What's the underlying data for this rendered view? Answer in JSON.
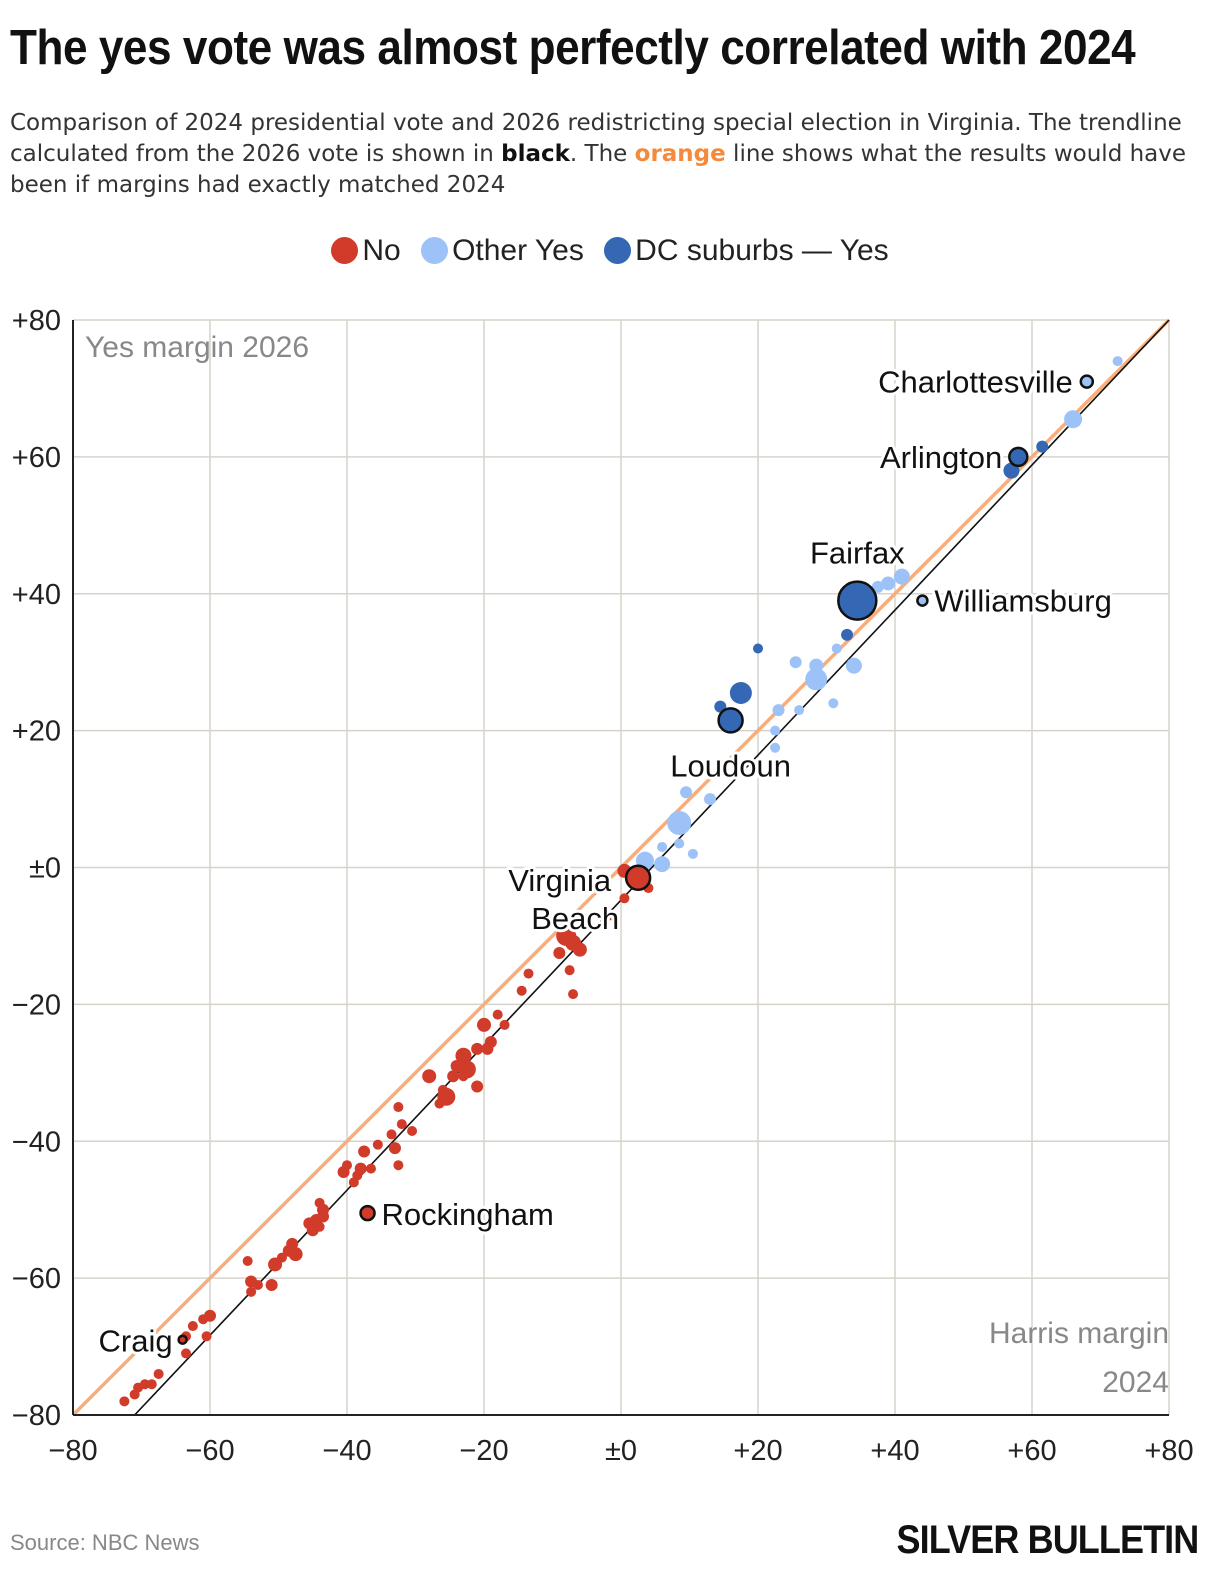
{
  "title": "The yes vote was almost perfectly correlated with 2024",
  "subtitle": {
    "part1": "Comparison of 2024 presidential vote and 2026 redistricting special election in Virginia. The trendline calculated from the 2026 vote is shown in ",
    "black_word": "black",
    "part2": ". The ",
    "orange_word": "orange",
    "part3": " line shows what the results would have been if margins had exactly matched 2024"
  },
  "legend": [
    {
      "label": "No",
      "color": "#d13b2a"
    },
    {
      "label": "Other Yes",
      "color": "#9cc2f7"
    },
    {
      "label": "DC suburbs — Yes",
      "color": "#3467b4"
    }
  ],
  "source": "Source: NBC News",
  "brand": "SILVER BULLETIN",
  "colors": {
    "no": "#d13b2a",
    "other_yes": "#9cc2f7",
    "dc": "#3467b4",
    "orange_line": "#f7ae7c",
    "trend_line": "#111111",
    "grid": "#d7d3cb"
  },
  "chart_data": {
    "type": "scatter",
    "xlabel": "Harris margin 2024",
    "ylabel": "Yes margin 2026",
    "xlim": [
      -80,
      80
    ],
    "ylim": [
      -80,
      80
    ],
    "xticks": [
      "−80",
      "−60",
      "−40",
      "−20",
      "±0",
      "+20",
      "+40",
      "+60",
      "+80"
    ],
    "yticks": [
      "+80",
      "+60",
      "+40",
      "+20",
      "±0",
      "−20",
      "−40",
      "−60",
      "−80"
    ],
    "tick_values": [
      -80,
      -60,
      -40,
      -20,
      0,
      20,
      40,
      60,
      80
    ],
    "equal_line": [
      [
        -80,
        -80
      ],
      [
        80,
        80
      ]
    ],
    "trend_line": [
      [
        -71,
        -80
      ],
      [
        80,
        80
      ]
    ],
    "labeled_points": [
      {
        "name": "Charlottesville",
        "x": 68,
        "y": 71,
        "group": "other_yes",
        "size": 6
      },
      {
        "name": "Arlington",
        "x": 58,
        "y": 60,
        "group": "dc",
        "size": 9
      },
      {
        "name": "Fairfax",
        "x": 34.5,
        "y": 39,
        "group": "dc",
        "size": 19
      },
      {
        "name": "Williamsburg",
        "x": 44,
        "y": 39,
        "group": "other_yes",
        "size": 5
      },
      {
        "name": "Loudoun",
        "x": 16,
        "y": 21.5,
        "group": "dc",
        "size": 12
      },
      {
        "name": "Virginia Beach",
        "x": 2.5,
        "y": -1.5,
        "group": "no",
        "size": 12
      },
      {
        "name": "Rockingham",
        "x": -37,
        "y": -50.5,
        "group": "no",
        "size": 7
      },
      {
        "name": "Craig",
        "x": -64,
        "y": -69,
        "group": "no",
        "size": 4
      }
    ],
    "points": [
      {
        "x": 72.5,
        "y": 74,
        "group": "other_yes",
        "size": 5
      },
      {
        "x": 66,
        "y": 65.5,
        "group": "other_yes",
        "size": 9
      },
      {
        "x": 61.5,
        "y": 61.5,
        "group": "dc",
        "size": 6
      },
      {
        "x": 57,
        "y": 58,
        "group": "dc",
        "size": 8
      },
      {
        "x": 41,
        "y": 42.5,
        "group": "other_yes",
        "size": 8
      },
      {
        "x": 39,
        "y": 41.5,
        "group": "other_yes",
        "size": 7
      },
      {
        "x": 37.5,
        "y": 41,
        "group": "other_yes",
        "size": 6
      },
      {
        "x": 33,
        "y": 34,
        "group": "dc",
        "size": 6
      },
      {
        "x": 34,
        "y": 29.5,
        "group": "other_yes",
        "size": 8
      },
      {
        "x": 31.5,
        "y": 32,
        "group": "other_yes",
        "size": 5
      },
      {
        "x": 28.5,
        "y": 29.5,
        "group": "other_yes",
        "size": 7
      },
      {
        "x": 28.5,
        "y": 27.5,
        "group": "other_yes",
        "size": 11
      },
      {
        "x": 31,
        "y": 24,
        "group": "other_yes",
        "size": 5
      },
      {
        "x": 25.5,
        "y": 30,
        "group": "other_yes",
        "size": 6
      },
      {
        "x": 26,
        "y": 23,
        "group": "other_yes",
        "size": 5
      },
      {
        "x": 23,
        "y": 23,
        "group": "other_yes",
        "size": 6
      },
      {
        "x": 22.5,
        "y": 20,
        "group": "other_yes",
        "size": 5
      },
      {
        "x": 22.5,
        "y": 17.5,
        "group": "other_yes",
        "size": 5
      },
      {
        "x": 20,
        "y": 32,
        "group": "dc",
        "size": 5
      },
      {
        "x": 17.5,
        "y": 25.5,
        "group": "dc",
        "size": 11
      },
      {
        "x": 14.5,
        "y": 23.5,
        "group": "dc",
        "size": 6
      },
      {
        "x": 13,
        "y": 10,
        "group": "other_yes",
        "size": 6
      },
      {
        "x": 9.5,
        "y": 11,
        "group": "other_yes",
        "size": 6
      },
      {
        "x": 8.5,
        "y": 6.5,
        "group": "other_yes",
        "size": 12
      },
      {
        "x": 8.5,
        "y": 3.5,
        "group": "other_yes",
        "size": 5
      },
      {
        "x": 10.5,
        "y": 2,
        "group": "other_yes",
        "size": 5
      },
      {
        "x": 6,
        "y": 3,
        "group": "other_yes",
        "size": 5
      },
      {
        "x": 6,
        "y": 0.5,
        "group": "other_yes",
        "size": 8
      },
      {
        "x": 3.5,
        "y": 1,
        "group": "other_yes",
        "size": 9
      },
      {
        "x": 0.5,
        "y": -0.5,
        "group": "no",
        "size": 7
      },
      {
        "x": 4,
        "y": -3,
        "group": "no",
        "size": 5
      },
      {
        "x": 0.5,
        "y": -4.5,
        "group": "no",
        "size": 5
      },
      {
        "x": -1.5,
        "y": -7,
        "group": "no",
        "size": 5
      },
      {
        "x": -8,
        "y": -10,
        "group": "no",
        "size": 10
      },
      {
        "x": -7,
        "y": -11,
        "group": "no",
        "size": 8
      },
      {
        "x": -6,
        "y": -12,
        "group": "no",
        "size": 7
      },
      {
        "x": -9,
        "y": -12.5,
        "group": "no",
        "size": 6
      },
      {
        "x": -13.5,
        "y": -15.5,
        "group": "no",
        "size": 5
      },
      {
        "x": -7.5,
        "y": -15,
        "group": "no",
        "size": 5
      },
      {
        "x": -14.5,
        "y": -18,
        "group": "no",
        "size": 5
      },
      {
        "x": -7,
        "y": -18.5,
        "group": "no",
        "size": 5
      },
      {
        "x": -18,
        "y": -21.5,
        "group": "no",
        "size": 5
      },
      {
        "x": -20,
        "y": -23,
        "group": "no",
        "size": 7
      },
      {
        "x": -17,
        "y": -23,
        "group": "no",
        "size": 5
      },
      {
        "x": -19,
        "y": -25.5,
        "group": "no",
        "size": 6
      },
      {
        "x": -21,
        "y": -26.5,
        "group": "no",
        "size": 6
      },
      {
        "x": -19.5,
        "y": -26.5,
        "group": "no",
        "size": 6
      },
      {
        "x": -23,
        "y": -27.5,
        "group": "no",
        "size": 8
      },
      {
        "x": -24,
        "y": -29,
        "group": "no",
        "size": 6
      },
      {
        "x": -22.5,
        "y": -29.5,
        "group": "no",
        "size": 9
      },
      {
        "x": -24.5,
        "y": -30.5,
        "group": "no",
        "size": 6
      },
      {
        "x": -23,
        "y": -30.5,
        "group": "no",
        "size": 5
      },
      {
        "x": -28,
        "y": -30.5,
        "group": "no",
        "size": 7
      },
      {
        "x": -26,
        "y": -32.5,
        "group": "no",
        "size": 5
      },
      {
        "x": -25.5,
        "y": -33.5,
        "group": "no",
        "size": 9
      },
      {
        "x": -21,
        "y": -32,
        "group": "no",
        "size": 6
      },
      {
        "x": -26.5,
        "y": -34.5,
        "group": "no",
        "size": 5
      },
      {
        "x": -32.5,
        "y": -35,
        "group": "no",
        "size": 5
      },
      {
        "x": -32,
        "y": -37.5,
        "group": "no",
        "size": 5
      },
      {
        "x": -30.5,
        "y": -38.5,
        "group": "no",
        "size": 5
      },
      {
        "x": -33.5,
        "y": -39,
        "group": "no",
        "size": 5
      },
      {
        "x": -35.5,
        "y": -40.5,
        "group": "no",
        "size": 5
      },
      {
        "x": -33,
        "y": -41,
        "group": "no",
        "size": 6
      },
      {
        "x": -37.5,
        "y": -41.5,
        "group": "no",
        "size": 6
      },
      {
        "x": -40,
        "y": -43.5,
        "group": "no",
        "size": 5
      },
      {
        "x": -32.5,
        "y": -43.5,
        "group": "no",
        "size": 5
      },
      {
        "x": -36.5,
        "y": -44,
        "group": "no",
        "size": 5
      },
      {
        "x": -38,
        "y": -44,
        "group": "no",
        "size": 6
      },
      {
        "x": -40.5,
        "y": -44.5,
        "group": "no",
        "size": 6
      },
      {
        "x": -38.5,
        "y": -45,
        "group": "no",
        "size": 5
      },
      {
        "x": -39,
        "y": -46,
        "group": "no",
        "size": 5
      },
      {
        "x": -44,
        "y": -49,
        "group": "no",
        "size": 5
      },
      {
        "x": -43.5,
        "y": -50,
        "group": "no",
        "size": 6
      },
      {
        "x": -43.5,
        "y": -51,
        "group": "no",
        "size": 6
      },
      {
        "x": -44.5,
        "y": -51.5,
        "group": "no",
        "size": 6
      },
      {
        "x": -45.5,
        "y": -52,
        "group": "no",
        "size": 6
      },
      {
        "x": -45,
        "y": -53,
        "group": "no",
        "size": 6
      },
      {
        "x": -44,
        "y": -52.5,
        "group": "no",
        "size": 5
      },
      {
        "x": -48,
        "y": -55,
        "group": "no",
        "size": 6
      },
      {
        "x": -48.5,
        "y": -56,
        "group": "no",
        "size": 6
      },
      {
        "x": -47.5,
        "y": -56.5,
        "group": "no",
        "size": 7
      },
      {
        "x": -49.5,
        "y": -57,
        "group": "no",
        "size": 5
      },
      {
        "x": -54.5,
        "y": -57.5,
        "group": "no",
        "size": 5
      },
      {
        "x": -50.5,
        "y": -58,
        "group": "no",
        "size": 7
      },
      {
        "x": -54,
        "y": -60.5,
        "group": "no",
        "size": 6
      },
      {
        "x": -53,
        "y": -61,
        "group": "no",
        "size": 5
      },
      {
        "x": -51,
        "y": -61,
        "group": "no",
        "size": 6
      },
      {
        "x": -54,
        "y": -62,
        "group": "no",
        "size": 5
      },
      {
        "x": -60,
        "y": -65.5,
        "group": "no",
        "size": 6
      },
      {
        "x": -61,
        "y": -66,
        "group": "no",
        "size": 5
      },
      {
        "x": -62.5,
        "y": -67,
        "group": "no",
        "size": 5
      },
      {
        "x": -60.5,
        "y": -68.5,
        "group": "no",
        "size": 5
      },
      {
        "x": -63.5,
        "y": -68.5,
        "group": "no",
        "size": 5
      },
      {
        "x": -63.5,
        "y": -71,
        "group": "no",
        "size": 5
      },
      {
        "x": -67.5,
        "y": -74,
        "group": "no",
        "size": 5
      },
      {
        "x": -69.5,
        "y": -75.5,
        "group": "no",
        "size": 5
      },
      {
        "x": -68.5,
        "y": -75.5,
        "group": "no",
        "size": 5
      },
      {
        "x": -70.5,
        "y": -76,
        "group": "no",
        "size": 5
      },
      {
        "x": -71,
        "y": -77,
        "group": "no",
        "size": 5
      },
      {
        "x": -72.5,
        "y": -78,
        "group": "no",
        "size": 5
      }
    ]
  }
}
